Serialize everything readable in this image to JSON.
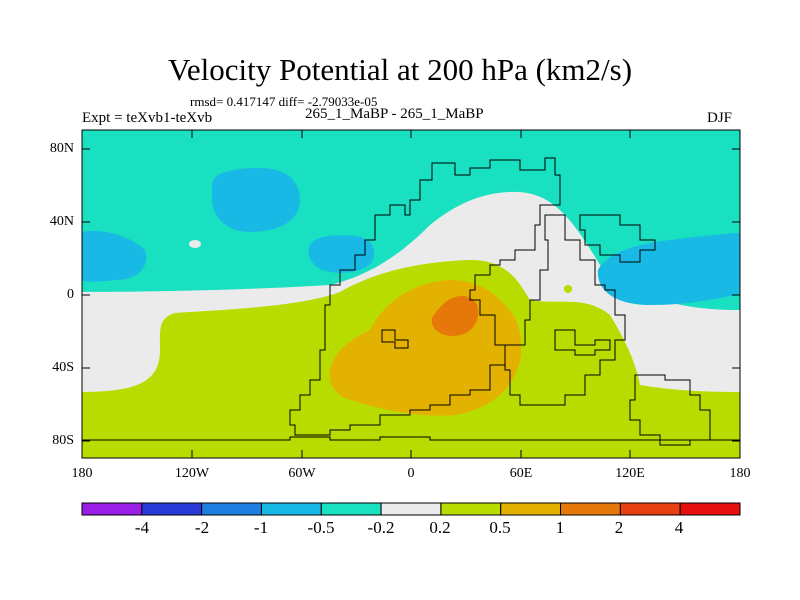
{
  "title": "Velocity Potential at 200 hPa (km2/s)",
  "stats": "rmsd= 0.417147 diff= -2.79033e-05",
  "left_label": "Expt = teXvb1-teXvb",
  "center_label": "265_1_MaBP - 265_1_MaBP",
  "right_label": "DJF",
  "lat_ticks": [
    "80N",
    "40N",
    "0",
    "40S",
    "80S"
  ],
  "lon_ticks": [
    "180",
    "120W",
    "60W",
    "0",
    "60E",
    "120E",
    "180"
  ],
  "colorbar": {
    "colors": [
      "#9b1ee6",
      "#2a3ad8",
      "#1e7fe0",
      "#19b9e6",
      "#19e0c0",
      "#ebebeb",
      "#b9dc00",
      "#e3b100",
      "#e6780a",
      "#e84010",
      "#e50f0f"
    ],
    "labels": [
      "-4",
      "-2",
      "-1",
      "-0.5",
      "-0.2",
      "0.2",
      "0.5",
      "1",
      "2",
      "4"
    ]
  },
  "field_colors": {
    "strong_negative": "#19b9e6",
    "weak_negative": "#19e0c0",
    "neutral": "#ebebeb",
    "weak_positive": "#b9dc00",
    "moderate_positive": "#e3b100",
    "strong_positive": "#e6780a"
  }
}
